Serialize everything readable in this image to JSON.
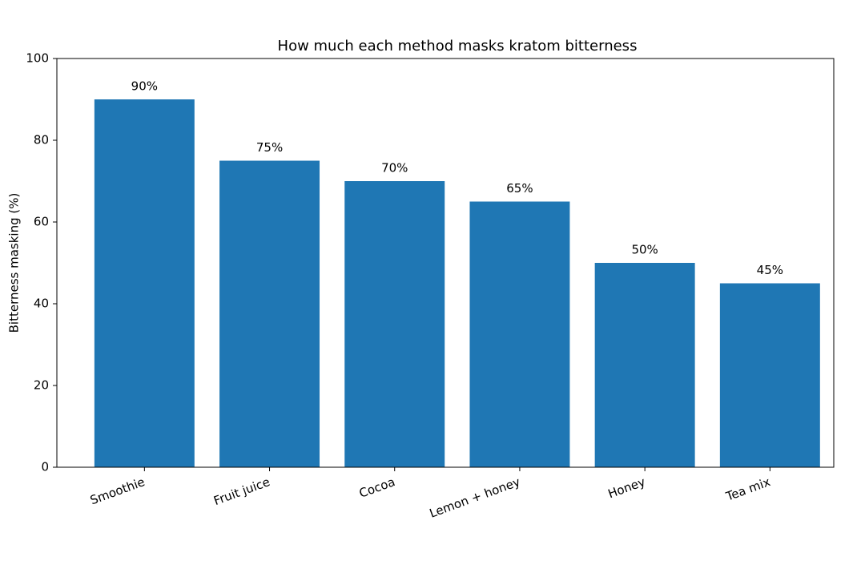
{
  "chart_data": {
    "type": "bar",
    "title": "How much each method masks kratom bitterness",
    "y_label": "Bitterness masking (%)",
    "categories": [
      "Smoothie",
      "Fruit juice",
      "Cocoa",
      "Lemon + honey",
      "Honey",
      "Tea mix"
    ],
    "values": [
      90,
      75,
      70,
      65,
      50,
      45
    ],
    "value_labels": [
      "90%",
      "75%",
      "70%",
      "65%",
      "50%",
      "45%"
    ],
    "color": "#1f77b4",
    "ylim": [
      0,
      100
    ],
    "yticks": [
      0,
      20,
      40,
      60,
      80,
      100
    ],
    "grid": false
  }
}
